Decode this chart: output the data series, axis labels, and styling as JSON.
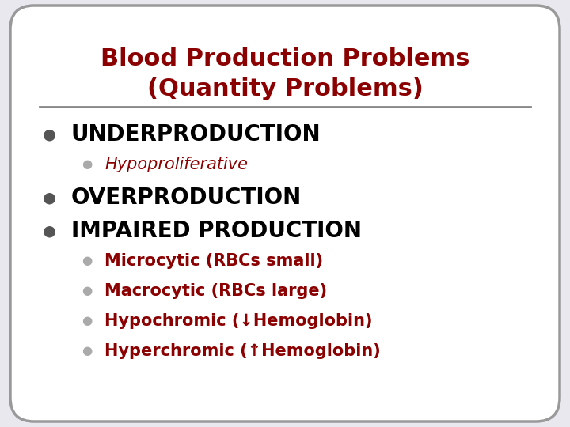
{
  "title_line1": "Blood Production Problems",
  "title_line2": "(Quantity Problems)",
  "title_color": "#8B0000",
  "background_color": "#e8e8ee",
  "box_color": "#ffffff",
  "box_edge_color": "#999999",
  "divider_color": "#888888",
  "main_bullet_color": "#555555",
  "sub_bullet_color": "#aaaaaa",
  "main_items": [
    {
      "text": "UNDERPRODUCTION",
      "color": "#000000"
    },
    {
      "text": "OVERPRODUCTION",
      "color": "#000000"
    },
    {
      "text": "IMPAIRED PRODUCTION",
      "color": "#000000"
    }
  ],
  "sub_item_under": [
    {
      "text": "Hypoproliferative",
      "color": "#8B0000"
    }
  ],
  "sub_items_impaired": [
    {
      "text": "Microcytic (RBCs small)",
      "color": "#8B0000"
    },
    {
      "text": "Macrocytic (RBCs large)",
      "color": "#8B0000"
    },
    {
      "text": "Hypochromic (↓Hemoglobin)",
      "color": "#8B0000"
    },
    {
      "text": "Hyperchromic (↑Hemoglobin)",
      "color": "#8B0000"
    }
  ],
  "figsize": [
    7.2,
    5.4
  ],
  "dpi": 100
}
